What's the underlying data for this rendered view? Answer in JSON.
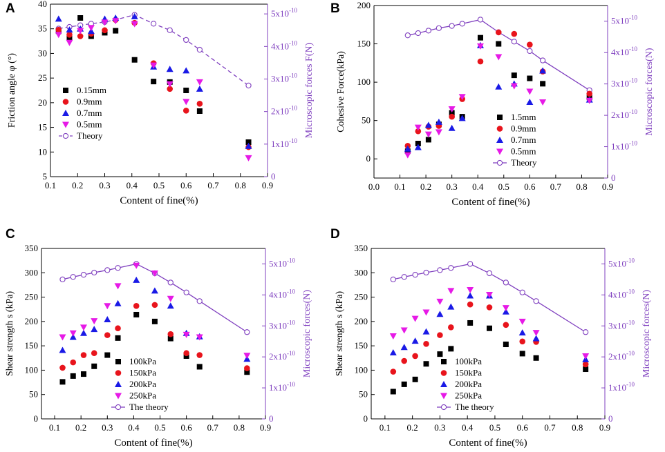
{
  "colors": {
    "black": "#000000",
    "red": "#e8141c",
    "blue": "#1a1ae6",
    "magenta": "#e61ae6",
    "theory": "#7f3fbf"
  },
  "chart_data": [
    {
      "type": "scatter",
      "panel": "A",
      "xlabel": "Content of fine(%)",
      "ylabel": "Friction angle φ (°)",
      "y2label": "Microscopic forces F(N)",
      "xlim": [
        0.1,
        0.9
      ],
      "ylim": [
        5,
        40
      ],
      "y2lim": [
        0,
        5.3
      ],
      "xticks": [
        "0.1",
        "0.2",
        "0.3",
        "0.4",
        "0.5",
        "0.6",
        "0.7",
        "0.8",
        "0.9"
      ],
      "yticks": [
        "5",
        "10",
        "15",
        "20",
        "25",
        "30",
        "35",
        "40"
      ],
      "y2ticks": [
        "0",
        "1x10⁻¹⁰",
        "2x10⁻¹⁰",
        "3x10⁻¹⁰",
        "4x10⁻¹⁰",
        "5x10⁻¹⁰"
      ],
      "theory_style": "dashed",
      "legend_position": "center-left",
      "x": [
        0.13,
        0.17,
        0.21,
        0.25,
        0.3,
        0.34,
        0.41,
        0.48,
        0.54,
        0.6,
        0.65,
        0.83
      ],
      "series": [
        {
          "name": "0.15mm",
          "marker": "square",
          "color": "black",
          "values": [
            34.5,
            33.2,
            37.2,
            33.5,
            34.2,
            34.6,
            28.7,
            24.3,
            24.2,
            22.5,
            18.3,
            12.0
          ]
        },
        {
          "name": "0.9mm",
          "marker": "circle",
          "color": "red",
          "values": [
            34.8,
            33.8,
            33.5,
            34.0,
            34.7,
            36.8,
            36.2,
            28.0,
            22.8,
            18.4,
            19.8,
            11.0
          ]
        },
        {
          "name": "0.7mm",
          "marker": "triangle",
          "color": "blue",
          "values": [
            37.0,
            34.8,
            35.0,
            34.5,
            37.0,
            37.2,
            37.5,
            27.3,
            26.8,
            26.5,
            22.8,
            11.2
          ]
        },
        {
          "name": "0.5mm",
          "marker": "triangle-down",
          "color": "magenta",
          "values": [
            33.8,
            32.2,
            34.6,
            35.2,
            36.3,
            36.6,
            36.0,
            27.6,
            23.8,
            20.2,
            24.2,
            8.8
          ]
        }
      ],
      "theory": {
        "name": "Theory",
        "x": [
          0.13,
          0.17,
          0.21,
          0.25,
          0.3,
          0.34,
          0.41,
          0.48,
          0.54,
          0.6,
          0.65,
          0.83
        ],
        "values": [
          4.55,
          4.6,
          4.65,
          4.7,
          4.75,
          4.82,
          4.97,
          4.7,
          4.5,
          4.2,
          3.9,
          2.8
        ]
      }
    },
    {
      "type": "scatter",
      "panel": "B",
      "xlabel": "Content of fine(%)",
      "ylabel": "Cohesive  Force(kPa)",
      "y2label": "Microscopic forces(N)",
      "xlim": [
        0.0,
        0.9
      ],
      "ylim": [
        -25,
        200
      ],
      "y2lim": [
        0,
        5.5
      ],
      "xticks": [
        "0.0",
        "0.1",
        "0.2",
        "0.3",
        "0.4",
        "0.5",
        "0.6",
        "0.7",
        "0.8",
        "0.9"
      ],
      "yticks": [
        "0",
        "50",
        "100",
        "150",
        "200"
      ],
      "y2ticks": [
        "0",
        "1x10⁻¹⁰",
        "2x10⁻¹⁰",
        "3x10⁻¹⁰",
        "4x10⁻¹⁰",
        "5x10⁻¹⁰"
      ],
      "theory_style": "solid",
      "legend_position": "bottom-center",
      "x": [
        0.13,
        0.17,
        0.21,
        0.25,
        0.3,
        0.34,
        0.41,
        0.48,
        0.54,
        0.6,
        0.65,
        0.83
      ],
      "series": [
        {
          "name": "1.5mm",
          "marker": "square",
          "color": "black",
          "values": [
            10,
            20,
            25,
            45,
            60,
            55,
            158,
            150,
            109,
            105,
            98,
            80
          ]
        },
        {
          "name": "0.9mm",
          "marker": "circle",
          "color": "red",
          "values": [
            17,
            36,
            42,
            43,
            55,
            78,
            127,
            165,
            163,
            149,
            114,
            85
          ]
        },
        {
          "name": "0.7mm",
          "marker": "triangle",
          "color": "blue",
          "values": [
            13,
            15,
            44,
            48,
            40,
            53,
            148,
            94,
            98,
            74,
            115,
            77
          ]
        },
        {
          "name": "0.5mm",
          "marker": "triangle-down",
          "color": "magenta",
          "values": [
            5,
            41,
            32,
            35,
            65,
            81,
            147,
            133,
            95,
            88,
            74,
            76
          ]
        }
      ],
      "theory": {
        "name": "Theory",
        "x": [
          0.13,
          0.17,
          0.21,
          0.25,
          0.3,
          0.34,
          0.41,
          0.48,
          0.54,
          0.6,
          0.65,
          0.83
        ],
        "values": [
          4.55,
          4.62,
          4.7,
          4.78,
          4.85,
          4.92,
          5.05,
          4.65,
          4.35,
          4.05,
          3.75,
          2.8
        ]
      }
    },
    {
      "type": "scatter",
      "panel": "C",
      "xlabel": "Content of fine(%)",
      "ylabel": "Shear strength s (kPa)",
      "y2label": "Microscopic forces(N)",
      "xlim": [
        0.05,
        0.9
      ],
      "ylim": [
        0,
        350
      ],
      "y2lim": [
        0,
        5.5
      ],
      "xticks": [
        "0.1",
        "0.2",
        "0.3",
        "0.4",
        "0.5",
        "0.6",
        "0.7",
        "0.8",
        "0.9"
      ],
      "yticks": [
        "0",
        "50",
        "100",
        "150",
        "200",
        "250",
        "300",
        "350"
      ],
      "y2ticks": [
        "0",
        "1x10⁻¹⁰",
        "2x10⁻¹⁰",
        "3x10⁻¹⁰",
        "4x10⁻¹⁰",
        "5x10⁻¹⁰"
      ],
      "theory_style": "solid",
      "legend_position": "bottom-center",
      "x": [
        0.13,
        0.17,
        0.21,
        0.25,
        0.3,
        0.34,
        0.41,
        0.48,
        0.54,
        0.6,
        0.65,
        0.83
      ],
      "series": [
        {
          "name": "100kPa",
          "marker": "square",
          "color": "black",
          "values": [
            76,
            88,
            92,
            108,
            131,
            166,
            214,
            200,
            165,
            129,
            107,
            96
          ]
        },
        {
          "name": "150kPa",
          "marker": "circle",
          "color": "red",
          "values": [
            105,
            116,
            131,
            135,
            172,
            186,
            232,
            234,
            174,
            135,
            131,
            104
          ]
        },
        {
          "name": "200kPa",
          "marker": "triangle",
          "color": "blue",
          "values": [
            141,
            168,
            176,
            184,
            204,
            237,
            285,
            263,
            232,
            176,
            169,
            123
          ]
        },
        {
          "name": "250kPa",
          "marker": "triangle-down",
          "color": "magenta",
          "values": [
            168,
            176,
            188,
            201,
            232,
            273,
            315,
            299,
            247,
            173,
            168,
            130
          ]
        }
      ],
      "theory": {
        "name": "The theory",
        "x": [
          0.13,
          0.17,
          0.21,
          0.25,
          0.3,
          0.34,
          0.41,
          0.48,
          0.54,
          0.6,
          0.65,
          0.83
        ],
        "values": [
          4.5,
          4.58,
          4.65,
          4.72,
          4.8,
          4.87,
          5.0,
          4.7,
          4.4,
          4.08,
          3.8,
          2.8
        ]
      }
    },
    {
      "type": "scatter",
      "panel": "D",
      "xlabel": "Content of fine(%)",
      "ylabel": "Shear strength s (kPa)",
      "y2label": "Microscopic forces(N)",
      "xlim": [
        0.05,
        0.9
      ],
      "ylim": [
        0,
        350
      ],
      "y2lim": [
        0,
        5.5
      ],
      "xticks": [
        "0.1",
        "0.2",
        "0.3",
        "0.4",
        "0.5",
        "0.6",
        "0.7",
        "0.8",
        "0.9"
      ],
      "yticks": [
        "0",
        "50",
        "100",
        "150",
        "200",
        "250",
        "300",
        "350"
      ],
      "y2ticks": [
        "0",
        "1x10⁻¹⁰",
        "2x10⁻¹⁰",
        "3x10⁻¹⁰",
        "4x10⁻¹⁰",
        "5x10⁻¹⁰"
      ],
      "theory_style": "solid",
      "legend_position": "bottom-center",
      "x": [
        0.13,
        0.17,
        0.21,
        0.25,
        0.3,
        0.34,
        0.41,
        0.48,
        0.54,
        0.6,
        0.65,
        0.83
      ],
      "series": [
        {
          "name": "100kPa",
          "marker": "square",
          "color": "black",
          "values": [
            56,
            71,
            81,
            113,
            133,
            144,
            197,
            186,
            153,
            134,
            125,
            102
          ]
        },
        {
          "name": "150kPa",
          "marker": "circle",
          "color": "red",
          "values": [
            97,
            119,
            129,
            154,
            172,
            188,
            235,
            229,
            193,
            159,
            158,
            112
          ]
        },
        {
          "name": "200kPa",
          "marker": "triangle",
          "color": "blue",
          "values": [
            136,
            147,
            160,
            179,
            215,
            230,
            253,
            253,
            220,
            177,
            165,
            122
          ]
        },
        {
          "name": "250kPa",
          "marker": "triangle-down",
          "color": "magenta",
          "values": [
            170,
            182,
            206,
            219,
            241,
            263,
            265,
            255,
            228,
            200,
            177,
            129
          ]
        }
      ],
      "theory": {
        "name": "The theory",
        "x": [
          0.13,
          0.17,
          0.21,
          0.25,
          0.3,
          0.34,
          0.41,
          0.48,
          0.54,
          0.6,
          0.65,
          0.83
        ],
        "values": [
          4.5,
          4.58,
          4.65,
          4.72,
          4.8,
          4.87,
          5.0,
          4.7,
          4.4,
          4.08,
          3.8,
          2.8
        ]
      }
    }
  ]
}
